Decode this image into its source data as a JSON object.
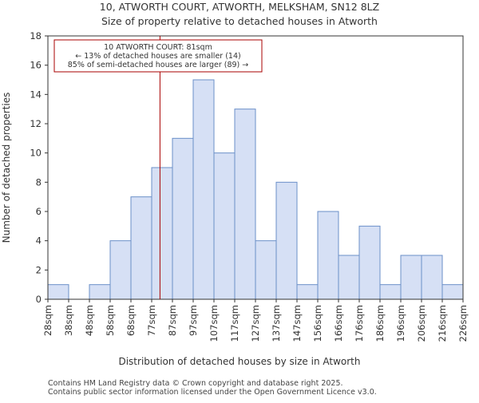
{
  "chart_data": {
    "type": "bar",
    "title": "10, ATWORTH COURT, ATWORTH, MELKSHAM, SN12 8LZ",
    "subtitle": "Size of property relative to detached houses in Atworth",
    "xlabel": "Distribution of detached houses by size in Atworth",
    "ylabel": "Number of detached properties",
    "bin_edges": [
      28,
      38,
      48,
      58,
      68,
      77,
      87,
      97,
      107,
      117,
      127,
      137,
      147,
      156,
      166,
      176,
      186,
      196,
      206,
      216,
      226
    ],
    "tick_labels": [
      "28sqm",
      "38sqm",
      "48sqm",
      "58sqm",
      "68sqm",
      "77sqm",
      "87sqm",
      "97sqm",
      "107sqm",
      "117sqm",
      "127sqm",
      "137sqm",
      "147sqm",
      "156sqm",
      "166sqm",
      "176sqm",
      "186sqm",
      "196sqm",
      "206sqm",
      "216sqm",
      "226sqm"
    ],
    "values": [
      1,
      0,
      1,
      4,
      7,
      9,
      11,
      15,
      10,
      13,
      4,
      8,
      1,
      6,
      3,
      5,
      1,
      3,
      3,
      1
    ],
    "ylim": [
      0,
      18
    ],
    "yticks": [
      0,
      2,
      4,
      6,
      8,
      10,
      12,
      14,
      16,
      18
    ],
    "grid": false,
    "bar_color": "#d6e0f5",
    "bar_edge_color": "#6b8fc8",
    "marker": {
      "value": 81,
      "color": "#aa0000"
    },
    "annotation": {
      "line1": "10 ATWORTH COURT: 81sqm",
      "line2": "← 13% of detached houses are smaller (14)",
      "line3": "85% of semi-detached houses are larger (89) →"
    }
  },
  "footer": {
    "line1": "Contains HM Land Registry data © Crown copyright and database right 2025.",
    "line2": "Contains public sector information licensed under the Open Government Licence v3.0."
  }
}
